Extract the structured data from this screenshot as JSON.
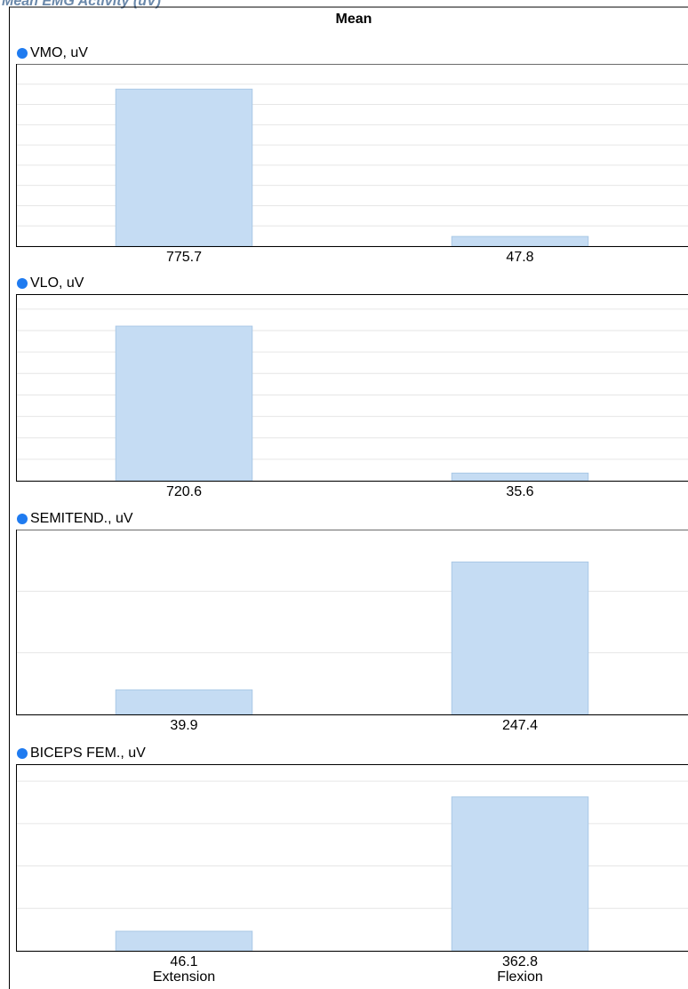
{
  "header": {
    "title": "Mean EMG Activity (uV)",
    "subtitle": "Mean"
  },
  "chart_data": [
    {
      "type": "bar",
      "title": "VMO, uV",
      "values": [
        775.7,
        47.8
      ],
      "color": "#c5dcf3",
      "ylim": [
        0,
        900
      ],
      "yticks": [
        0,
        100,
        200,
        300,
        400,
        500,
        600,
        700,
        800,
        900
      ],
      "grid": true
    },
    {
      "type": "bar",
      "title": "VLO, uV",
      "values": [
        720.6,
        35.6
      ],
      "color": "#c5dcf3",
      "ylim": [
        0,
        870
      ],
      "yticks": [
        0,
        100,
        200,
        300,
        400,
        500,
        600,
        700,
        800
      ],
      "grid": true
    },
    {
      "type": "bar",
      "title": "SEMITEND., uV",
      "values": [
        39.9,
        247.4
      ],
      "color": "#c5dcf3",
      "ylim": [
        0,
        300
      ],
      "yticks": [
        0,
        100,
        200,
        300
      ],
      "grid": true
    },
    {
      "type": "bar",
      "title": "BICEPS FEM., uV",
      "categories": [
        "Extension",
        "Flexion"
      ],
      "values": [
        46.1,
        362.8
      ],
      "color": "#c5dcf3",
      "ylim": [
        0,
        440
      ],
      "yticks": [
        0,
        100,
        200,
        300,
        400
      ],
      "grid": true
    }
  ]
}
